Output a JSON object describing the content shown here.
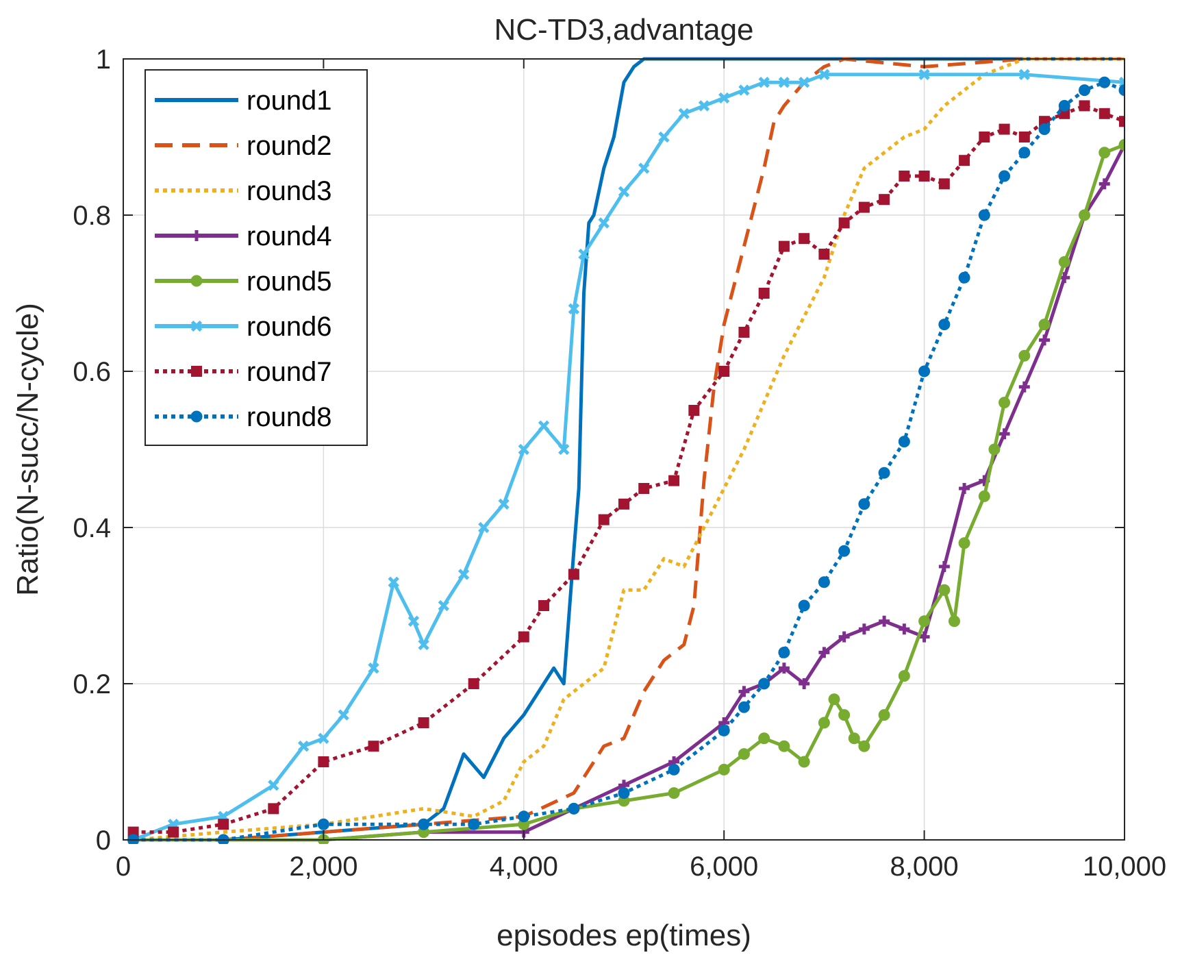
{
  "chart_data": {
    "type": "line",
    "title": "NC-TD3,advantage",
    "xlabel": "episodes ep(times)",
    "ylabel": "Ratio(N-succ/N-cycle)",
    "xlim": [
      0,
      10000
    ],
    "ylim": [
      0,
      1
    ],
    "grid": true,
    "legend_location": "top-left",
    "xticks": [
      0,
      2000,
      4000,
      6000,
      8000,
      10000
    ],
    "xtick_labels": [
      "0",
      "2,000",
      "4,000",
      "6,000",
      "8,000",
      "10,000"
    ],
    "yticks": [
      0,
      0.2,
      0.4,
      0.6,
      0.8,
      1
    ],
    "ytick_labels": [
      "0",
      "0.2",
      "0.4",
      "0.6",
      "0.8",
      "1"
    ],
    "series": [
      {
        "name": "round1",
        "color": "#0072BD",
        "dash": "solid",
        "marker": "none",
        "x": [
          100,
          1000,
          2000,
          3000,
          3200,
          3400,
          3600,
          3800,
          4000,
          4200,
          4300,
          4400,
          4500,
          4550,
          4600,
          4650,
          4700,
          4800,
          4900,
          5000,
          5100,
          5200,
          5400,
          6000,
          7000,
          8000,
          9000,
          10000
        ],
        "y": [
          0.0,
          0.0,
          0.01,
          0.02,
          0.04,
          0.11,
          0.08,
          0.13,
          0.16,
          0.2,
          0.22,
          0.2,
          0.37,
          0.45,
          0.7,
          0.79,
          0.8,
          0.86,
          0.9,
          0.97,
          0.99,
          1.0,
          1.0,
          1.0,
          1.0,
          1.0,
          1.0,
          1.0
        ]
      },
      {
        "name": "round2",
        "color": "#D95319",
        "dash": "dashed",
        "marker": "none",
        "x": [
          100,
          1000,
          2000,
          3000,
          4000,
          4500,
          4800,
          5000,
          5200,
          5400,
          5600,
          5700,
          5800,
          5900,
          6000,
          6200,
          6400,
          6500,
          6600,
          6800,
          7000,
          7200,
          8000,
          9000,
          10000
        ],
        "y": [
          0.0,
          0.0,
          0.01,
          0.02,
          0.03,
          0.06,
          0.12,
          0.13,
          0.19,
          0.23,
          0.25,
          0.3,
          0.46,
          0.58,
          0.66,
          0.76,
          0.86,
          0.92,
          0.94,
          0.97,
          0.99,
          1.0,
          0.99,
          1.0,
          1.0
        ]
      },
      {
        "name": "round3",
        "color": "#EDB120",
        "dash": "dotted",
        "marker": "none",
        "x": [
          100,
          1000,
          2000,
          3000,
          3500,
          3800,
          4000,
          4200,
          4400,
          4600,
          4800,
          5000,
          5200,
          5400,
          5600,
          5800,
          6000,
          6200,
          6400,
          6600,
          6800,
          7000,
          7200,
          7400,
          7600,
          7800,
          8000,
          8200,
          8400,
          8600,
          8800,
          9000,
          9500,
          10000
        ],
        "y": [
          0.0,
          0.01,
          0.02,
          0.04,
          0.03,
          0.05,
          0.1,
          0.12,
          0.18,
          0.2,
          0.22,
          0.32,
          0.32,
          0.36,
          0.35,
          0.4,
          0.45,
          0.5,
          0.56,
          0.62,
          0.67,
          0.72,
          0.8,
          0.86,
          0.88,
          0.9,
          0.91,
          0.94,
          0.96,
          0.98,
          0.99,
          1.0,
          1.0,
          1.0
        ]
      },
      {
        "name": "round4",
        "color": "#7E2F8E",
        "dash": "solid",
        "marker": "plus",
        "x": [
          100,
          1000,
          2000,
          3000,
          4000,
          4500,
          5000,
          5500,
          6000,
          6200,
          6400,
          6600,
          6800,
          7000,
          7200,
          7400,
          7600,
          7800,
          8000,
          8200,
          8400,
          8600,
          8800,
          9000,
          9200,
          9400,
          9600,
          9800,
          10000
        ],
        "y": [
          0.0,
          0.0,
          0.0,
          0.01,
          0.01,
          0.04,
          0.07,
          0.1,
          0.15,
          0.19,
          0.2,
          0.22,
          0.2,
          0.24,
          0.26,
          0.27,
          0.28,
          0.27,
          0.26,
          0.35,
          0.45,
          0.46,
          0.52,
          0.58,
          0.64,
          0.72,
          0.8,
          0.84,
          0.89
        ]
      },
      {
        "name": "round5",
        "color": "#77AC30",
        "dash": "solid",
        "marker": "circle",
        "x": [
          100,
          1000,
          2000,
          3000,
          4000,
          4500,
          5000,
          5500,
          6000,
          6200,
          6400,
          6600,
          6800,
          7000,
          7100,
          7200,
          7300,
          7400,
          7600,
          7800,
          8000,
          8200,
          8300,
          8400,
          8600,
          8700,
          8800,
          9000,
          9200,
          9400,
          9600,
          9800,
          10000
        ],
        "y": [
          0.0,
          0.0,
          0.0,
          0.01,
          0.02,
          0.04,
          0.05,
          0.06,
          0.09,
          0.11,
          0.13,
          0.12,
          0.1,
          0.15,
          0.18,
          0.16,
          0.13,
          0.12,
          0.16,
          0.21,
          0.28,
          0.32,
          0.28,
          0.38,
          0.44,
          0.5,
          0.56,
          0.62,
          0.66,
          0.74,
          0.8,
          0.88,
          0.89
        ]
      },
      {
        "name": "round6",
        "color": "#4DBEEE",
        "dash": "solid",
        "marker": "x",
        "x": [
          100,
          500,
          1000,
          1500,
          1800,
          2000,
          2200,
          2500,
          2700,
          2900,
          3000,
          3200,
          3400,
          3600,
          3800,
          4000,
          4200,
          4400,
          4500,
          4600,
          4800,
          5000,
          5200,
          5400,
          5600,
          5800,
          6000,
          6200,
          6400,
          6600,
          6800,
          7000,
          8000,
          9000,
          10000
        ],
        "y": [
          0.0,
          0.02,
          0.03,
          0.07,
          0.12,
          0.13,
          0.16,
          0.22,
          0.33,
          0.28,
          0.25,
          0.3,
          0.34,
          0.4,
          0.43,
          0.5,
          0.53,
          0.5,
          0.68,
          0.75,
          0.79,
          0.83,
          0.86,
          0.9,
          0.93,
          0.94,
          0.95,
          0.96,
          0.97,
          0.97,
          0.97,
          0.98,
          0.98,
          0.98,
          0.97
        ]
      },
      {
        "name": "round7",
        "color": "#A2142F",
        "dash": "dotted",
        "marker": "square",
        "x": [
          100,
          500,
          1000,
          1500,
          2000,
          2500,
          3000,
          3500,
          4000,
          4200,
          4500,
          4800,
          5000,
          5200,
          5500,
          5700,
          6000,
          6200,
          6400,
          6600,
          6800,
          7000,
          7200,
          7400,
          7600,
          7800,
          8000,
          8200,
          8400,
          8600,
          8800,
          9000,
          9200,
          9400,
          9600,
          9800,
          10000
        ],
        "y": [
          0.01,
          0.01,
          0.02,
          0.04,
          0.1,
          0.12,
          0.15,
          0.2,
          0.26,
          0.3,
          0.34,
          0.41,
          0.43,
          0.45,
          0.46,
          0.55,
          0.6,
          0.65,
          0.7,
          0.76,
          0.77,
          0.75,
          0.79,
          0.81,
          0.82,
          0.85,
          0.85,
          0.84,
          0.87,
          0.9,
          0.91,
          0.9,
          0.92,
          0.93,
          0.94,
          0.93,
          0.92
        ]
      },
      {
        "name": "round8",
        "color": "#0072BD",
        "dash": "dotted",
        "marker": "circle",
        "x": [
          100,
          1000,
          2000,
          3000,
          3500,
          4000,
          4500,
          5000,
          5500,
          6000,
          6200,
          6400,
          6600,
          6800,
          7000,
          7200,
          7400,
          7600,
          7800,
          8000,
          8200,
          8400,
          8600,
          8800,
          9000,
          9200,
          9400,
          9600,
          9800,
          10000
        ],
        "y": [
          0.0,
          0.0,
          0.02,
          0.02,
          0.02,
          0.03,
          0.04,
          0.06,
          0.09,
          0.14,
          0.17,
          0.2,
          0.24,
          0.3,
          0.33,
          0.37,
          0.43,
          0.47,
          0.51,
          0.6,
          0.66,
          0.72,
          0.8,
          0.85,
          0.88,
          0.91,
          0.94,
          0.96,
          0.97,
          0.96
        ]
      }
    ]
  }
}
